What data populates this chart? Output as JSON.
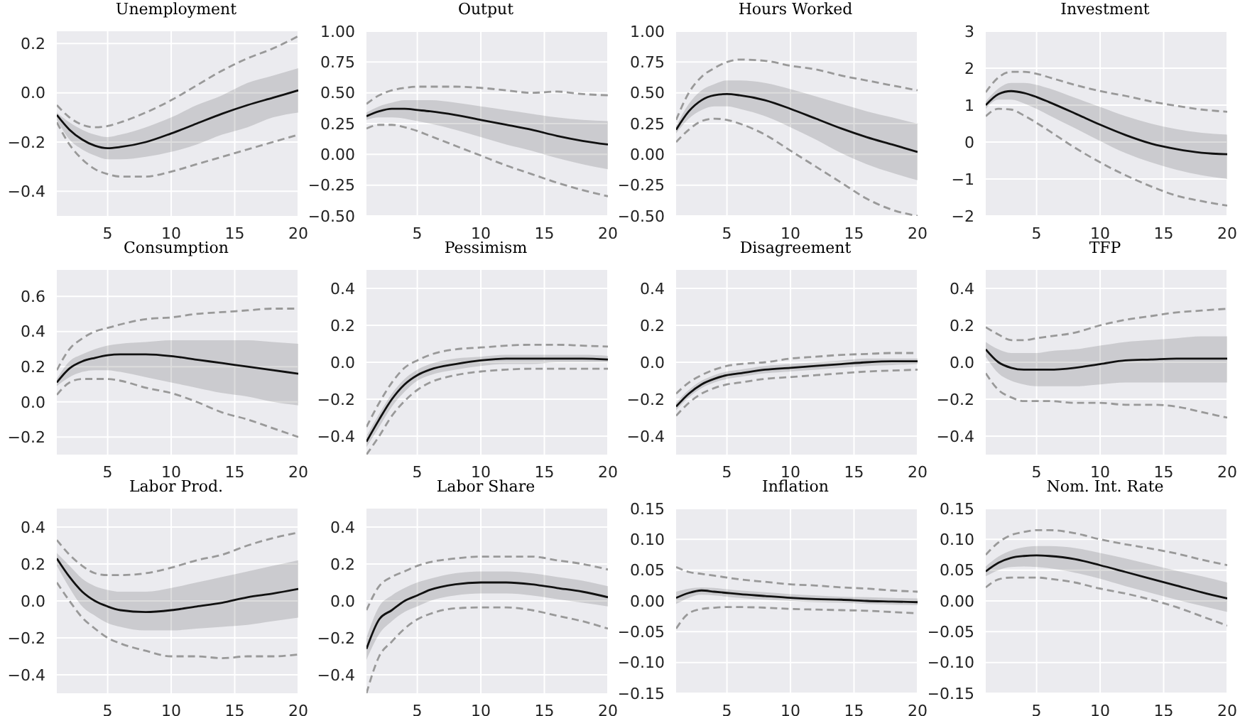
{
  "chart_data": [
    {
      "type": "line",
      "title": "Unemployment",
      "x": [
        1,
        2,
        3,
        4,
        5,
        6,
        8,
        10,
        12,
        14,
        16,
        18,
        20
      ],
      "xlim": [
        1,
        20
      ],
      "xticks": [
        5,
        10,
        15,
        20
      ],
      "ylim": [
        -0.5,
        0.25
      ],
      "yticks": [
        {
          "value": -0.4,
          "label": "−0.4"
        },
        {
          "value": -0.2,
          "label": "−0.2"
        },
        {
          "value": 0,
          "label": "0.0"
        },
        {
          "value": 0.2,
          "label": "0.2"
        }
      ],
      "grid": true,
      "series": [
        {
          "color": "#111111",
          "line_style": "solid",
          "values": [
            -0.09,
            -0.15,
            -0.19,
            -0.215,
            -0.225,
            -0.22,
            -0.2,
            -0.165,
            -0.125,
            -0.085,
            -0.05,
            -0.02,
            0.01
          ],
          "lower": [
            -0.11,
            -0.19,
            -0.23,
            -0.255,
            -0.27,
            -0.27,
            -0.26,
            -0.24,
            -0.21,
            -0.17,
            -0.14,
            -0.1,
            -0.08
          ],
          "upper": [
            -0.08,
            -0.12,
            -0.15,
            -0.17,
            -0.18,
            -0.17,
            -0.14,
            -0.1,
            -0.05,
            -0.01,
            0.04,
            0.07,
            0.1
          ]
        },
        {
          "color": "#999999",
          "line_style": "dashed",
          "values": [
            -0.05,
            -0.1,
            -0.13,
            -0.14,
            -0.135,
            -0.12,
            -0.08,
            -0.03,
            0.03,
            0.09,
            0.14,
            0.18,
            0.23
          ]
        },
        {
          "color": "#999999",
          "line_style": "dashed",
          "values": [
            -0.12,
            -0.21,
            -0.27,
            -0.31,
            -0.33,
            -0.34,
            -0.34,
            -0.32,
            -0.29,
            -0.26,
            -0.23,
            -0.2,
            -0.17
          ]
        }
      ]
    },
    {
      "type": "line",
      "title": "Output",
      "x": [
        1,
        2,
        3,
        4,
        5,
        6,
        8,
        10,
        12,
        14,
        16,
        18,
        20
      ],
      "xlim": [
        1,
        20
      ],
      "xticks": [
        5,
        10,
        15,
        20
      ],
      "ylim": [
        -0.5,
        1.0
      ],
      "yticks": [
        {
          "value": -0.5,
          "label": "−0.50"
        },
        {
          "value": -0.25,
          "label": "−0.25"
        },
        {
          "value": 0,
          "label": "0.00"
        },
        {
          "value": 0.25,
          "label": "0.25"
        },
        {
          "value": 0.5,
          "label": "0.50"
        },
        {
          "value": 0.75,
          "label": "0.75"
        },
        {
          "value": 1,
          "label": "1.00"
        }
      ],
      "grid": true,
      "series": [
        {
          "color": "#111111",
          "line_style": "solid",
          "values": [
            0.31,
            0.35,
            0.37,
            0.37,
            0.36,
            0.35,
            0.32,
            0.28,
            0.24,
            0.2,
            0.15,
            0.11,
            0.08
          ],
          "lower": [
            0.28,
            0.3,
            0.3,
            0.29,
            0.27,
            0.25,
            0.2,
            0.14,
            0.08,
            0.03,
            -0.03,
            -0.08,
            -0.12
          ],
          "upper": [
            0.34,
            0.39,
            0.42,
            0.44,
            0.44,
            0.44,
            0.42,
            0.39,
            0.36,
            0.33,
            0.3,
            0.28,
            0.27
          ]
        },
        {
          "color": "#999999",
          "line_style": "dashed",
          "values": [
            0.41,
            0.48,
            0.52,
            0.54,
            0.55,
            0.55,
            0.55,
            0.54,
            0.52,
            0.5,
            0.51,
            0.49,
            0.48
          ]
        },
        {
          "color": "#999999",
          "line_style": "dashed",
          "values": [
            0.21,
            0.24,
            0.24,
            0.22,
            0.19,
            0.15,
            0.07,
            -0.01,
            -0.09,
            -0.16,
            -0.23,
            -0.29,
            -0.34
          ]
        }
      ]
    },
    {
      "type": "line",
      "title": "Hours Worked",
      "x": [
        1,
        2,
        3,
        4,
        5,
        6,
        8,
        10,
        12,
        14,
        16,
        18,
        20
      ],
      "xlim": [
        1,
        20
      ],
      "xticks": [
        5,
        10,
        15,
        20
      ],
      "ylim": [
        -0.5,
        1.0
      ],
      "yticks": [
        {
          "value": -0.5,
          "label": "−0.50"
        },
        {
          "value": -0.25,
          "label": "−0.25"
        },
        {
          "value": 0,
          "label": "0.00"
        },
        {
          "value": 0.25,
          "label": "0.25"
        },
        {
          "value": 0.5,
          "label": "0.50"
        },
        {
          "value": 0.75,
          "label": "0.75"
        },
        {
          "value": 1,
          "label": "1.00"
        }
      ],
      "grid": true,
      "series": [
        {
          "color": "#111111",
          "line_style": "solid",
          "values": [
            0.2,
            0.35,
            0.44,
            0.48,
            0.49,
            0.48,
            0.44,
            0.37,
            0.29,
            0.21,
            0.14,
            0.08,
            0.02
          ],
          "lower": [
            0.17,
            0.29,
            0.36,
            0.39,
            0.39,
            0.37,
            0.31,
            0.22,
            0.12,
            0.01,
            -0.08,
            -0.15,
            -0.21
          ],
          "upper": [
            0.23,
            0.41,
            0.52,
            0.57,
            0.6,
            0.6,
            0.58,
            0.53,
            0.47,
            0.41,
            0.35,
            0.3,
            0.25
          ]
        },
        {
          "color": "#999999",
          "line_style": "dashed",
          "values": [
            0.28,
            0.5,
            0.63,
            0.7,
            0.75,
            0.77,
            0.76,
            0.72,
            0.69,
            0.64,
            0.6,
            0.56,
            0.52
          ]
        },
        {
          "color": "#999999",
          "line_style": "dashed",
          "values": [
            0.1,
            0.2,
            0.27,
            0.29,
            0.28,
            0.25,
            0.16,
            0.03,
            -0.1,
            -0.23,
            -0.36,
            -0.45,
            -0.5
          ]
        }
      ]
    },
    {
      "type": "line",
      "title": "Investment",
      "x": [
        1,
        2,
        3,
        4,
        5,
        6,
        8,
        10,
        12,
        14,
        16,
        18,
        20
      ],
      "xlim": [
        1,
        20
      ],
      "xticks": [
        5,
        10,
        15,
        20
      ],
      "ylim": [
        -2,
        3
      ],
      "yticks": [
        {
          "value": -2,
          "label": "−2"
        },
        {
          "value": -1,
          "label": "−1"
        },
        0,
        1,
        2,
        3
      ],
      "grid": true,
      "series": [
        {
          "color": "#111111",
          "line_style": "solid",
          "values": [
            1.0,
            1.3,
            1.38,
            1.33,
            1.22,
            1.08,
            0.78,
            0.47,
            0.19,
            -0.04,
            -0.19,
            -0.29,
            -0.33
          ],
          "lower": [
            0.9,
            1.15,
            1.15,
            1.05,
            0.9,
            0.72,
            0.38,
            0.03,
            -0.3,
            -0.55,
            -0.75,
            -0.9,
            -1.0
          ],
          "upper": [
            1.1,
            1.45,
            1.6,
            1.6,
            1.55,
            1.45,
            1.2,
            0.95,
            0.7,
            0.5,
            0.35,
            0.25,
            0.2
          ]
        },
        {
          "color": "#999999",
          "line_style": "dashed",
          "values": [
            1.35,
            1.75,
            1.9,
            1.9,
            1.85,
            1.75,
            1.55,
            1.38,
            1.25,
            1.1,
            0.98,
            0.88,
            0.82
          ]
        },
        {
          "color": "#999999",
          "line_style": "dashed",
          "values": [
            0.7,
            0.9,
            0.88,
            0.72,
            0.52,
            0.3,
            -0.15,
            -0.55,
            -0.9,
            -1.2,
            -1.45,
            -1.6,
            -1.72
          ]
        }
      ]
    },
    {
      "type": "line",
      "title": "Consumption",
      "x": [
        1,
        2,
        3,
        4,
        5,
        6,
        8,
        10,
        12,
        14,
        16,
        18,
        20
      ],
      "xlim": [
        1,
        20
      ],
      "xticks": [
        5,
        10,
        15,
        20
      ],
      "ylim": [
        -0.3,
        0.75
      ],
      "yticks": [
        {
          "value": -0.2,
          "label": "−0.2"
        },
        {
          "value": 0,
          "label": "0.0"
        },
        {
          "value": 0.2,
          "label": "0.2"
        },
        {
          "value": 0.4,
          "label": "0.4"
        },
        {
          "value": 0.6,
          "label": "0.6"
        }
      ],
      "grid": true,
      "series": [
        {
          "color": "#111111",
          "line_style": "solid",
          "values": [
            0.11,
            0.19,
            0.23,
            0.25,
            0.265,
            0.27,
            0.27,
            0.26,
            0.24,
            0.22,
            0.2,
            0.18,
            0.16
          ],
          "lower": [
            0.09,
            0.14,
            0.17,
            0.18,
            0.18,
            0.17,
            0.14,
            0.11,
            0.08,
            0.05,
            0.03,
            0.0,
            -0.02
          ],
          "upper": [
            0.13,
            0.23,
            0.27,
            0.3,
            0.32,
            0.33,
            0.34,
            0.35,
            0.35,
            0.35,
            0.35,
            0.34,
            0.33
          ]
        },
        {
          "color": "#999999",
          "line_style": "dashed",
          "values": [
            0.18,
            0.3,
            0.36,
            0.4,
            0.42,
            0.44,
            0.47,
            0.48,
            0.5,
            0.51,
            0.52,
            0.53,
            0.53
          ]
        },
        {
          "color": "#999999",
          "line_style": "dashed",
          "values": [
            0.04,
            0.11,
            0.13,
            0.13,
            0.13,
            0.12,
            0.08,
            0.05,
            0.0,
            -0.06,
            -0.1,
            -0.15,
            -0.2
          ]
        }
      ]
    },
    {
      "type": "line",
      "title": "Pessimism",
      "x": [
        1,
        2,
        3,
        4,
        5,
        6,
        8,
        10,
        12,
        14,
        16,
        18,
        20
      ],
      "xlim": [
        1,
        20
      ],
      "xticks": [
        5,
        10,
        15,
        20
      ],
      "ylim": [
        -0.5,
        0.5
      ],
      "yticks": [
        {
          "value": -0.4,
          "label": "−0.4"
        },
        {
          "value": -0.2,
          "label": "−0.2"
        },
        {
          "value": 0,
          "label": "0.0"
        },
        {
          "value": 0.2,
          "label": "0.2"
        },
        {
          "value": 0.4,
          "label": "0.4"
        }
      ],
      "grid": true,
      "series": [
        {
          "color": "#111111",
          "line_style": "solid",
          "values": [
            -0.43,
            -0.31,
            -0.2,
            -0.12,
            -0.07,
            -0.04,
            -0.01,
            0.01,
            0.02,
            0.02,
            0.02,
            0.02,
            0.015
          ],
          "lower": [
            -0.46,
            -0.35,
            -0.24,
            -0.16,
            -0.1,
            -0.07,
            -0.04,
            -0.02,
            -0.01,
            -0.01,
            0.0,
            0.0,
            0.0
          ],
          "upper": [
            -0.4,
            -0.28,
            -0.17,
            -0.09,
            -0.04,
            -0.01,
            0.02,
            0.03,
            0.04,
            0.04,
            0.04,
            0.04,
            0.035
          ]
        },
        {
          "color": "#999999",
          "line_style": "dashed",
          "values": [
            -0.35,
            -0.22,
            -0.11,
            -0.03,
            0.01,
            0.04,
            0.07,
            0.08,
            0.09,
            0.095,
            0.095,
            0.09,
            0.085
          ]
        },
        {
          "color": "#999999",
          "line_style": "dashed",
          "values": [
            -0.5,
            -0.4,
            -0.29,
            -0.21,
            -0.15,
            -0.11,
            -0.07,
            -0.05,
            -0.04,
            -0.035,
            -0.035,
            -0.035,
            -0.035
          ]
        }
      ]
    },
    {
      "type": "line",
      "title": "Disagreement",
      "x": [
        1,
        2,
        3,
        4,
        5,
        6,
        8,
        10,
        12,
        14,
        16,
        18,
        20
      ],
      "xlim": [
        1,
        20
      ],
      "xticks": [
        5,
        10,
        15,
        20
      ],
      "ylim": [
        -0.5,
        0.5
      ],
      "yticks": [
        {
          "value": -0.4,
          "label": "−0.4"
        },
        {
          "value": -0.2,
          "label": "−0.2"
        },
        {
          "value": 0,
          "label": "0.0"
        },
        {
          "value": 0.2,
          "label": "0.2"
        },
        {
          "value": 0.4,
          "label": "0.4"
        }
      ],
      "grid": true,
      "series": [
        {
          "color": "#111111",
          "line_style": "solid",
          "values": [
            -0.24,
            -0.17,
            -0.12,
            -0.09,
            -0.07,
            -0.06,
            -0.04,
            -0.03,
            -0.02,
            -0.01,
            0.0,
            0.005,
            0.005
          ],
          "lower": [
            -0.26,
            -0.19,
            -0.14,
            -0.11,
            -0.09,
            -0.08,
            -0.06,
            -0.05,
            -0.04,
            -0.03,
            -0.02,
            -0.015,
            -0.01
          ],
          "upper": [
            -0.22,
            -0.15,
            -0.1,
            -0.07,
            -0.05,
            -0.04,
            -0.02,
            -0.01,
            0.0,
            0.01,
            0.02,
            0.02,
            0.02
          ]
        },
        {
          "color": "#999999",
          "line_style": "dashed",
          "values": [
            -0.17,
            -0.11,
            -0.07,
            -0.04,
            -0.02,
            -0.01,
            0.0,
            0.02,
            0.03,
            0.04,
            0.045,
            0.05,
            0.05
          ]
        },
        {
          "color": "#999999",
          "line_style": "dashed",
          "values": [
            -0.29,
            -0.22,
            -0.17,
            -0.14,
            -0.12,
            -0.11,
            -0.09,
            -0.08,
            -0.07,
            -0.06,
            -0.05,
            -0.045,
            -0.04
          ]
        }
      ]
    },
    {
      "type": "line",
      "title": "TFP",
      "x": [
        1,
        2,
        3,
        4,
        5,
        6,
        8,
        10,
        12,
        14,
        16,
        18,
        20
      ],
      "xlim": [
        1,
        20
      ],
      "xticks": [
        5,
        10,
        15,
        20
      ],
      "ylim": [
        -0.5,
        0.5
      ],
      "yticks": [
        {
          "value": -0.4,
          "label": "−0.4"
        },
        {
          "value": -0.2,
          "label": "−0.2"
        },
        {
          "value": 0,
          "label": "0.0"
        },
        {
          "value": 0.2,
          "label": "0.2"
        },
        {
          "value": 0.4,
          "label": "0.4"
        }
      ],
      "grid": true,
      "series": [
        {
          "color": "#111111",
          "line_style": "solid",
          "values": [
            0.07,
            0.0,
            -0.03,
            -0.04,
            -0.04,
            -0.04,
            -0.03,
            -0.01,
            0.01,
            0.015,
            0.02,
            0.02,
            0.02
          ],
          "lower": [
            0.03,
            -0.06,
            -0.1,
            -0.12,
            -0.13,
            -0.13,
            -0.13,
            -0.12,
            -0.11,
            -0.11,
            -0.11,
            -0.11,
            -0.11
          ],
          "upper": [
            0.11,
            0.07,
            0.05,
            0.05,
            0.05,
            0.06,
            0.07,
            0.09,
            0.11,
            0.12,
            0.13,
            0.14,
            0.14
          ]
        },
        {
          "color": "#999999",
          "line_style": "dashed",
          "values": [
            0.19,
            0.15,
            0.12,
            0.12,
            0.13,
            0.14,
            0.16,
            0.2,
            0.23,
            0.25,
            0.27,
            0.28,
            0.29
          ]
        },
        {
          "color": "#999999",
          "line_style": "dashed",
          "values": [
            -0.06,
            -0.15,
            -0.19,
            -0.21,
            -0.21,
            -0.21,
            -0.22,
            -0.22,
            -0.23,
            -0.23,
            -0.24,
            -0.27,
            -0.3
          ]
        }
      ]
    },
    {
      "type": "line",
      "title": "Labor Prod.",
      "x": [
        1,
        2,
        3,
        4,
        5,
        6,
        8,
        10,
        12,
        14,
        16,
        18,
        20
      ],
      "xlim": [
        1,
        20
      ],
      "xticks": [
        5,
        10,
        15,
        20
      ],
      "ylim": [
        -0.5,
        0.5
      ],
      "yticks": [
        {
          "value": -0.4,
          "label": "−0.4"
        },
        {
          "value": -0.2,
          "label": "−0.2"
        },
        {
          "value": 0,
          "label": "0.0"
        },
        {
          "value": 0.2,
          "label": "0.2"
        },
        {
          "value": 0.4,
          "label": "0.4"
        }
      ],
      "grid": true,
      "series": [
        {
          "color": "#111111",
          "line_style": "solid",
          "values": [
            0.23,
            0.13,
            0.05,
            0.0,
            -0.03,
            -0.05,
            -0.06,
            -0.05,
            -0.03,
            -0.01,
            0.02,
            0.04,
            0.065
          ],
          "lower": [
            0.19,
            0.07,
            -0.03,
            -0.08,
            -0.12,
            -0.14,
            -0.16,
            -0.16,
            -0.15,
            -0.14,
            -0.13,
            -0.11,
            -0.09
          ],
          "upper": [
            0.26,
            0.19,
            0.12,
            0.08,
            0.06,
            0.05,
            0.05,
            0.07,
            0.1,
            0.13,
            0.16,
            0.19,
            0.22
          ]
        },
        {
          "color": "#999999",
          "line_style": "dashed",
          "values": [
            0.33,
            0.25,
            0.19,
            0.15,
            0.14,
            0.14,
            0.15,
            0.18,
            0.22,
            0.25,
            0.3,
            0.34,
            0.37
          ]
        },
        {
          "color": "#999999",
          "line_style": "dashed",
          "values": [
            0.1,
            0.0,
            -0.09,
            -0.15,
            -0.2,
            -0.23,
            -0.27,
            -0.3,
            -0.3,
            -0.31,
            -0.3,
            -0.3,
            -0.29
          ]
        }
      ]
    },
    {
      "type": "line",
      "title": "Labor Share",
      "x": [
        1,
        2,
        3,
        4,
        5,
        6,
        8,
        10,
        12,
        14,
        16,
        18,
        20
      ],
      "xlim": [
        1,
        20
      ],
      "xticks": [
        5,
        10,
        15,
        20
      ],
      "ylim": [
        -0.5,
        0.5
      ],
      "yticks": [
        {
          "value": -0.4,
          "label": "−0.4"
        },
        {
          "value": -0.2,
          "label": "−0.2"
        },
        {
          "value": 0,
          "label": "0.0"
        },
        {
          "value": 0.2,
          "label": "0.2"
        },
        {
          "value": 0.4,
          "label": "0.4"
        }
      ],
      "grid": true,
      "series": [
        {
          "color": "#111111",
          "line_style": "solid",
          "values": [
            -0.26,
            -0.1,
            -0.05,
            0.0,
            0.03,
            0.06,
            0.09,
            0.1,
            0.1,
            0.09,
            0.07,
            0.05,
            0.02
          ],
          "lower": [
            -0.32,
            -0.18,
            -0.11,
            -0.06,
            -0.03,
            0.0,
            0.03,
            0.04,
            0.04,
            0.03,
            0.01,
            -0.01,
            -0.03
          ],
          "upper": [
            -0.2,
            -0.03,
            0.03,
            0.07,
            0.1,
            0.12,
            0.15,
            0.16,
            0.16,
            0.15,
            0.13,
            0.11,
            0.08
          ]
        },
        {
          "color": "#999999",
          "line_style": "dashed",
          "values": [
            -0.05,
            0.08,
            0.13,
            0.16,
            0.19,
            0.21,
            0.23,
            0.24,
            0.24,
            0.24,
            0.22,
            0.2,
            0.17
          ]
        },
        {
          "color": "#999999",
          "line_style": "dashed",
          "values": [
            -0.5,
            -0.3,
            -0.22,
            -0.15,
            -0.1,
            -0.07,
            -0.04,
            -0.035,
            -0.035,
            -0.05,
            -0.08,
            -0.11,
            -0.15
          ]
        }
      ]
    },
    {
      "type": "line",
      "title": "Inflation",
      "x": [
        1,
        2,
        3,
        4,
        5,
        6,
        8,
        10,
        12,
        14,
        16,
        18,
        20
      ],
      "xlim": [
        1,
        20
      ],
      "xticks": [
        5,
        10,
        15,
        20
      ],
      "ylim": [
        -0.15,
        0.15
      ],
      "yticks": [
        {
          "value": -0.15,
          "label": "−0.15"
        },
        {
          "value": -0.1,
          "label": "−0.10"
        },
        {
          "value": -0.05,
          "label": "−0.05"
        },
        {
          "value": 0,
          "label": "0.00"
        },
        {
          "value": 0.05,
          "label": "0.05"
        },
        {
          "value": 0.1,
          "label": "0.10"
        },
        {
          "value": 0.15,
          "label": "0.15"
        }
      ],
      "grid": true,
      "series": [
        {
          "color": "#111111",
          "line_style": "solid",
          "values": [
            0.005,
            0.013,
            0.017,
            0.015,
            0.013,
            0.011,
            0.008,
            0.005,
            0.003,
            0.002,
            0.0,
            -0.001,
            -0.002
          ],
          "lower": [
            -0.005,
            0.005,
            0.01,
            0.009,
            0.007,
            0.005,
            0.002,
            0.0,
            -0.002,
            -0.003,
            -0.005,
            -0.006,
            -0.007
          ],
          "upper": [
            0.015,
            0.02,
            0.022,
            0.021,
            0.019,
            0.017,
            0.014,
            0.011,
            0.009,
            0.007,
            0.006,
            0.005,
            0.004
          ]
        },
        {
          "color": "#999999",
          "line_style": "dashed",
          "values": [
            0.055,
            0.047,
            0.044,
            0.041,
            0.038,
            0.035,
            0.031,
            0.027,
            0.025,
            0.022,
            0.02,
            0.017,
            0.015
          ]
        },
        {
          "color": "#999999",
          "line_style": "dashed",
          "values": [
            -0.045,
            -0.02,
            -0.013,
            -0.011,
            -0.01,
            -0.01,
            -0.011,
            -0.013,
            -0.014,
            -0.015,
            -0.016,
            -0.018,
            -0.02
          ]
        }
      ]
    },
    {
      "type": "line",
      "title": "Nom. Int. Rate",
      "x": [
        1,
        2,
        3,
        4,
        5,
        6,
        8,
        10,
        12,
        14,
        16,
        18,
        20
      ],
      "xlim": [
        1,
        20
      ],
      "xticks": [
        5,
        10,
        15,
        20
      ],
      "ylim": [
        -0.15,
        0.15
      ],
      "yticks": [
        {
          "value": -0.15,
          "label": "−0.15"
        },
        {
          "value": -0.1,
          "label": "−0.10"
        },
        {
          "value": -0.05,
          "label": "−0.05"
        },
        {
          "value": 0,
          "label": "0.00"
        },
        {
          "value": 0.05,
          "label": "0.05"
        },
        {
          "value": 0.1,
          "label": "0.10"
        },
        {
          "value": 0.15,
          "label": "0.15"
        }
      ],
      "grid": true,
      "series": [
        {
          "color": "#111111",
          "line_style": "solid",
          "values": [
            0.048,
            0.062,
            0.07,
            0.073,
            0.074,
            0.073,
            0.068,
            0.058,
            0.047,
            0.036,
            0.025,
            0.014,
            0.004
          ],
          "lower": [
            0.04,
            0.05,
            0.055,
            0.056,
            0.055,
            0.053,
            0.046,
            0.036,
            0.024,
            0.013,
            0.002,
            -0.008,
            -0.018
          ],
          "upper": [
            0.056,
            0.072,
            0.082,
            0.087,
            0.089,
            0.089,
            0.086,
            0.078,
            0.069,
            0.059,
            0.049,
            0.04,
            0.03
          ]
        },
        {
          "color": "#999999",
          "line_style": "dashed",
          "values": [
            0.075,
            0.095,
            0.107,
            0.112,
            0.115,
            0.115,
            0.11,
            0.1,
            0.092,
            0.085,
            0.077,
            0.067,
            0.058
          ]
        },
        {
          "color": "#999999",
          "line_style": "dashed",
          "values": [
            0.022,
            0.035,
            0.038,
            0.038,
            0.038,
            0.036,
            0.03,
            0.02,
            0.012,
            0.002,
            -0.01,
            -0.025,
            -0.04
          ]
        }
      ]
    }
  ]
}
